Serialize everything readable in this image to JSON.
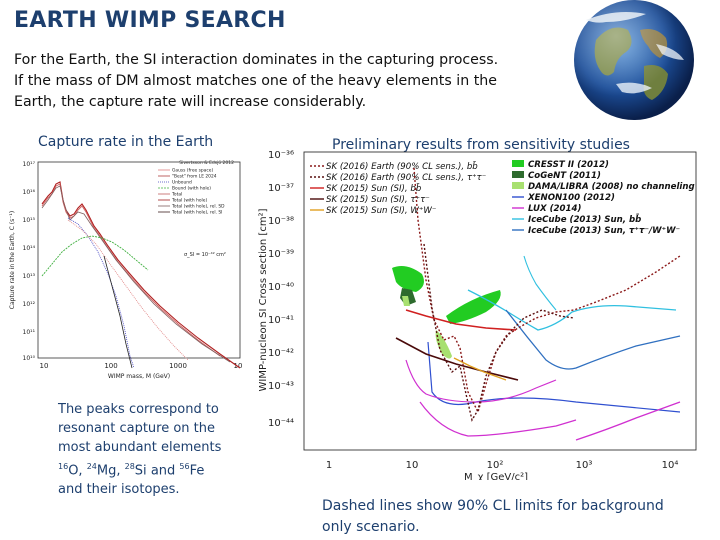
{
  "slide": {
    "title": "EARTH WIMP SEARCH",
    "intro": [
      "For the Earth, the SI interaction dominates in the capturing process.",
      "If the mass of DM almost matches one of the heavy elements in the",
      "Earth, the capture rate will increase considerably."
    ]
  },
  "left_panel": {
    "heading": "Capture rate in the Earth",
    "credit": "Sivertsson & Edsjö 2012",
    "ylabel": "Capture rate in the Earth, C (s⁻¹)",
    "xlabel": "WIMP mass, M (GeV)",
    "sigma_label": "σ_SI = 10⁻⁴² cm²",
    "x_ticks": [
      "10",
      "100",
      "1000",
      "10"
    ],
    "y_ticks": [
      "10¹⁷",
      "10¹⁶",
      "10¹⁵",
      "10¹⁴",
      "10¹³",
      "10¹²",
      "10¹¹",
      "10¹⁰"
    ],
    "legend": [
      {
        "label": "Gauss (free space)",
        "color": "#e08080"
      },
      {
        "label": "\"Best\" from LE 2024",
        "color": "#b04040"
      },
      {
        "label": "Unbound",
        "color": "#4040c0"
      },
      {
        "label": "Bound (with hole)",
        "color": "#40b040"
      },
      {
        "label": "Total",
        "color": "#c06060"
      },
      {
        "label": "Total (with hole)",
        "color": "#a02020"
      },
      {
        "label": "Total (with hole), rel. SD",
        "color": "#806060"
      },
      {
        "label": "Total (with hole), rel. SI",
        "color": "#402020"
      }
    ]
  },
  "left_note": {
    "lines": [
      "The peaks correspond to",
      "resonant capture on the",
      "most abundant elements"
    ],
    "isotopes": [
      {
        "mass": "16",
        "el": "O"
      },
      {
        "mass": "24",
        "el": "Mg"
      },
      {
        "mass": "28",
        "el": "Si"
      },
      {
        "mass": "56",
        "el": "Fe"
      }
    ],
    "and_word": "and",
    "last_line": "and their isotopes."
  },
  "right_panel": {
    "heading": "Preliminary results from sensitivity studies",
    "ylabel": "WIMP-nucleon SI Cross section [cm²]",
    "xlabel": "M_χ [GeV/c²]",
    "y_ticks": [
      "10⁻³⁶",
      "10⁻³⁷",
      "10⁻³⁸",
      "10⁻³⁹",
      "10⁻⁴⁰",
      "10⁻⁴¹",
      "10⁻⁴²",
      "10⁻⁴³",
      "10⁻⁴⁴"
    ],
    "x_ticks": [
      "1",
      "10",
      "10²",
      "10³",
      "10⁴"
    ],
    "legend_left": [
      {
        "label": "SK (2016) Earth (90% CL sens.), bb̄",
        "color": "#8b1a1a",
        "dash": "2,2"
      },
      {
        "label": "SK (2016) Earth (90% CL sens.), τ⁺τ⁻",
        "color": "#5a1010",
        "dash": "2,2"
      },
      {
        "label": "SK (2015) Sun (SI), bb̄",
        "color": "#d02020",
        "dash": ""
      },
      {
        "label": "SK (2015) Sun (SI), τ⁺τ⁻",
        "color": "#4a0a0a",
        "dash": ""
      },
      {
        "label": "SK (2015) Sun (SI), W⁺W⁻",
        "color": "#e0a020",
        "dash": ""
      }
    ],
    "legend_right": [
      {
        "label": "CRESST II (2012)",
        "color": "#22cc22",
        "kind": "patch"
      },
      {
        "label": "CoGeNT (2011)",
        "color": "#2e6b2e",
        "kind": "patch"
      },
      {
        "label": "DAMA/LIBRA (2008) no channeling",
        "color": "#a8e070",
        "kind": "patch"
      },
      {
        "label": "XENON100 (2012)",
        "color": "#3050d0",
        "kind": "line"
      },
      {
        "label": "LUX (2014)",
        "color": "#d030d0",
        "kind": "line"
      },
      {
        "label": "IceCube (2013) Sun, bb̄",
        "color": "#30c0e0",
        "kind": "line"
      },
      {
        "label": "IceCube (2013) Sun, τ⁺τ⁻/W⁺W⁻",
        "color": "#3070c0",
        "kind": "line"
      }
    ]
  },
  "right_note": {
    "lines": [
      "Dashed lines show 90% CL limits for background",
      "only scenario."
    ]
  }
}
